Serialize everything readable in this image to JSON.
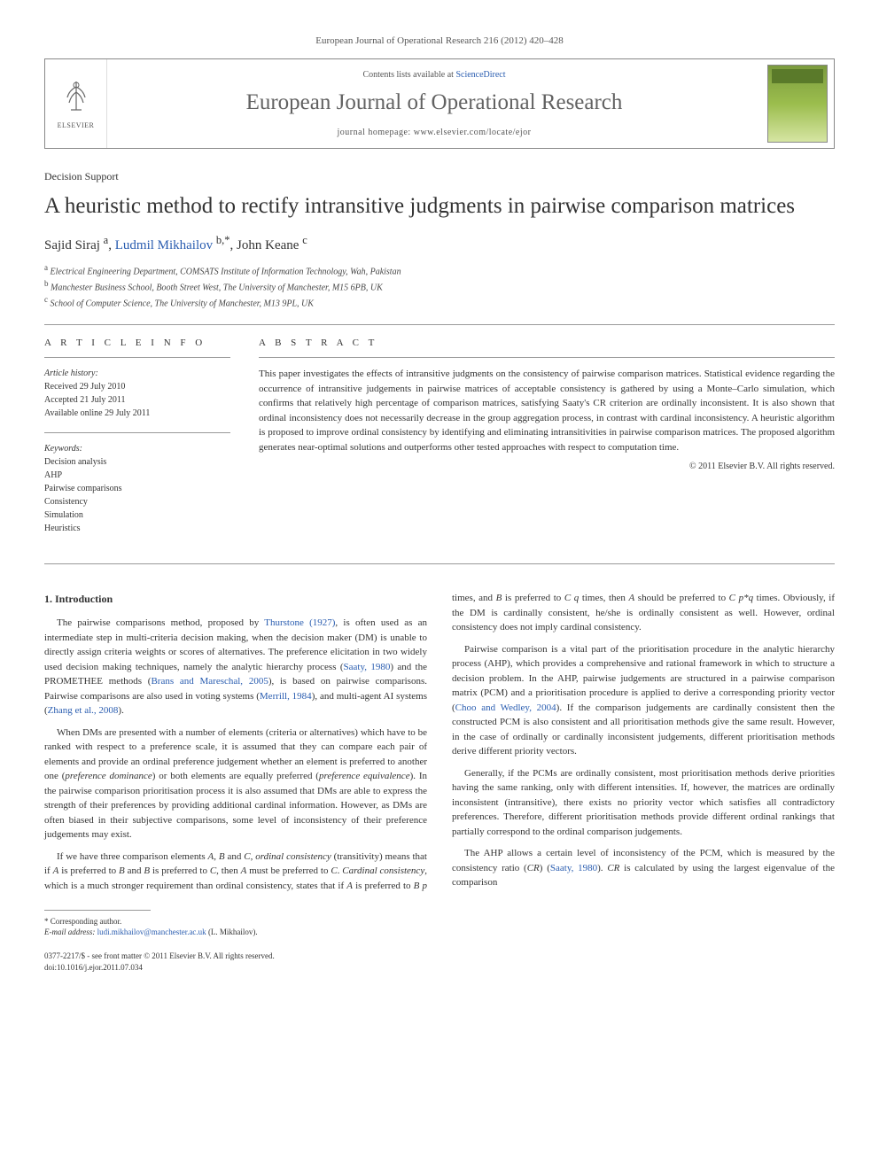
{
  "journal_ref": "European Journal of Operational Research 216 (2012) 420–428",
  "header": {
    "contents_prefix": "Contents lists available at ",
    "contents_link": "ScienceDirect",
    "journal_name": "European Journal of Operational Research",
    "homepage_label": "journal homepage: ",
    "homepage_url": "www.elsevier.com/locate/ejor",
    "publisher": "ELSEVIER"
  },
  "article": {
    "section_label": "Decision Support",
    "title": "A heuristic method to rectify intransitive judgments in pairwise comparison matrices",
    "authors_html": "Sajid Siraj <sup>a</sup>, <a href='#'>Ludmil Mikhailov</a> <sup>b,*</sup>, John Keane <sup>c</sup>",
    "affiliations": [
      "a Electrical Engineering Department, COMSATS Institute of Information Technology, Wah, Pakistan",
      "b Manchester Business School, Booth Street West, The University of Manchester, M15 6PB, UK",
      "c School of Computer Science, The University of Manchester, M13 9PL, UK"
    ]
  },
  "info": {
    "heading": "A R T I C L E   I N F O",
    "history_label": "Article history:",
    "history": [
      "Received 29 July 2010",
      "Accepted 21 July 2011",
      "Available online 29 July 2011"
    ],
    "keywords_label": "Keywords:",
    "keywords": [
      "Decision analysis",
      "AHP",
      "Pairwise comparisons",
      "Consistency",
      "Simulation",
      "Heuristics"
    ]
  },
  "abstract": {
    "heading": "A B S T R A C T",
    "text": "This paper investigates the effects of intransitive judgments on the consistency of pairwise comparison matrices. Statistical evidence regarding the occurrence of intransitive judgements in pairwise matrices of acceptable consistency is gathered by using a Monte–Carlo simulation, which confirms that relatively high percentage of comparison matrices, satisfying Saaty's CR criterion are ordinally inconsistent. It is also shown that ordinal inconsistency does not necessarily decrease in the group aggregation process, in contrast with cardinal inconsistency. A heuristic algorithm is proposed to improve ordinal consistency by identifying and eliminating intransitivities in pairwise comparison matrices. The proposed algorithm generates near-optimal solutions and outperforms other tested approaches with respect to computation time.",
    "copyright": "© 2011 Elsevier B.V. All rights reserved."
  },
  "body": {
    "section1_heading": "1. Introduction",
    "paragraphs": [
      "The pairwise comparisons method, proposed by <a href='#'>Thurstone (1927)</a>, is often used as an intermediate step in multi-criteria decision making, when the decision maker (DM) is unable to directly assign criteria weights or scores of alternatives. The preference elicitation in two widely used decision making techniques, namely the analytic hierarchy process (<a href='#'>Saaty, 1980</a>) and the PROMETHEE methods (<a href='#'>Brans and Mareschal, 2005</a>), is based on pairwise comparisons. Pairwise comparisons are also used in voting systems (<a href='#'>Merrill, 1984</a>), and multi-agent AI systems (<a href='#'>Zhang et al., 2008</a>).",
      "When DMs are presented with a number of elements (criteria or alternatives) which have to be ranked with respect to a preference scale, it is assumed that they can compare each pair of elements and provide an ordinal preference judgement whether an element is preferred to another one (<em>preference dominance</em>) or both elements are equally preferred (<em>preference equivalence</em>). In the pairwise comparison prioritisation process it is also assumed that DMs are able to express the strength of their preferences by providing additional cardinal information. However, as DMs are often biased in their subjective comparisons, some level of inconsistency of their preference judgements may exist.",
      "If we have three comparison elements <em>A</em>, <em>B</em> and <em>C</em>, <em>ordinal consistency</em> (transitivity) means that if <em>A</em> is preferred to <em>B</em> and <em>B</em> is preferred to <em>C</em>, then <em>A</em> must be preferred to <em>C</em>. <em>Cardinal consistency</em>, which is a much stronger requirement than ordinal consistency, states that if <em>A</em> is preferred to <em>B p</em> times, and <em>B</em> is preferred to <em>C q</em> times, then <em>A</em> should be preferred to <em>C p*q</em> times. Obviously, if the DM is cardinally consistent, he/she is ordinally consistent as well. However, ordinal consistency does not imply cardinal consistency.",
      "Pairwise comparison is a vital part of the prioritisation procedure in the analytic hierarchy process (AHP), which provides a comprehensive and rational framework in which to structure a decision problem. In the AHP, pairwise judgements are structured in a pairwise comparison matrix (PCM) and a prioritisation procedure is applied to derive a corresponding priority vector (<a href='#'>Choo and Wedley, 2004</a>). If the comparison judgements are cardinally consistent then the constructed PCM is also consistent and all prioritisation methods give the same result. However, in the case of ordinally or cardinally inconsistent judgements, different prioritisation methods derive different priority vectors.",
      "Generally, if the PCMs are ordinally consistent, most prioritisation methods derive priorities having the same ranking, only with different intensities. If, however, the matrices are ordinally inconsistent (intransitive), there exists no priority vector which satisfies all contradictory preferences. Therefore, different prioritisation methods provide different ordinal rankings that partially correspond to the ordinal comparison judgements.",
      "The AHP allows a certain level of inconsistency of the PCM, which is measured by the consistency ratio (<em>CR</em>) (<a href='#'>Saaty, 1980</a>). <em>CR</em> is calculated by using the largest eigenvalue of the comparison"
    ]
  },
  "footnotes": {
    "corresponding": "* Corresponding author.",
    "email_label": "E-mail address: ",
    "email": "ludi.mikhailov@manchester.ac.uk",
    "email_suffix": " (L. Mikhailov)."
  },
  "footer": {
    "issn_line": "0377-2217/$ - see front matter © 2011 Elsevier B.V. All rights reserved.",
    "doi_line": "doi:10.1016/j.ejor.2011.07.034"
  },
  "colors": {
    "link": "#2a5db0",
    "text": "#333333",
    "rule": "#999999",
    "cover_green": "#9bbd4d"
  }
}
